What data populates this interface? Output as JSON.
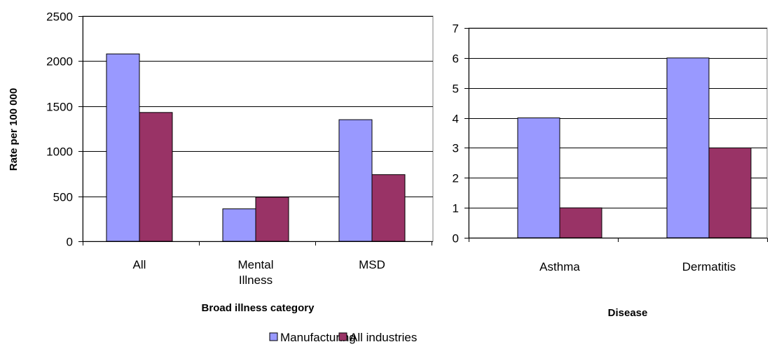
{
  "chart_data": [
    {
      "type": "bar",
      "categories": [
        "All",
        "Mental Illness",
        "MSD"
      ],
      "category_lines": [
        [
          "All"
        ],
        [
          "Mental",
          "Illness"
        ],
        [
          "MSD"
        ]
      ],
      "series": [
        {
          "name": "Manufacturing",
          "values": [
            2080,
            360,
            1350
          ]
        },
        {
          "name": "All industries",
          "values": [
            1430,
            490,
            740
          ]
        }
      ],
      "xlabel": "Broad illness category",
      "ylabel": "Rate per 100 000",
      "ylim": [
        0,
        2500
      ],
      "yticks": [
        "0",
        "500",
        "1000",
        "1500",
        "2000",
        "2500"
      ],
      "grid": true
    },
    {
      "type": "bar",
      "categories": [
        "Asthma",
        "Dermatitis"
      ],
      "category_lines": [
        [
          "Asthma"
        ],
        [
          "Dermatitis"
        ]
      ],
      "series": [
        {
          "name": "Manufacturing",
          "values": [
            4,
            6
          ]
        },
        {
          "name": "All industries",
          "values": [
            1,
            3
          ]
        }
      ],
      "xlabel": "Disease",
      "ylabel": "",
      "ylim": [
        0,
        7
      ],
      "yticks": [
        "0",
        "1",
        "2",
        "3",
        "4",
        "5",
        "6",
        "7"
      ],
      "grid": true
    }
  ],
  "legend": {
    "placement": "bottom-center",
    "items": [
      {
        "name": "Manufacturing",
        "color": "#9999ff"
      },
      {
        "name": "All industries",
        "color": "#993366"
      }
    ]
  },
  "colors": {
    "manufacturing": "#9999ff",
    "all_industries": "#993366",
    "gridline": "#000000",
    "plot_border": "#808080"
  }
}
